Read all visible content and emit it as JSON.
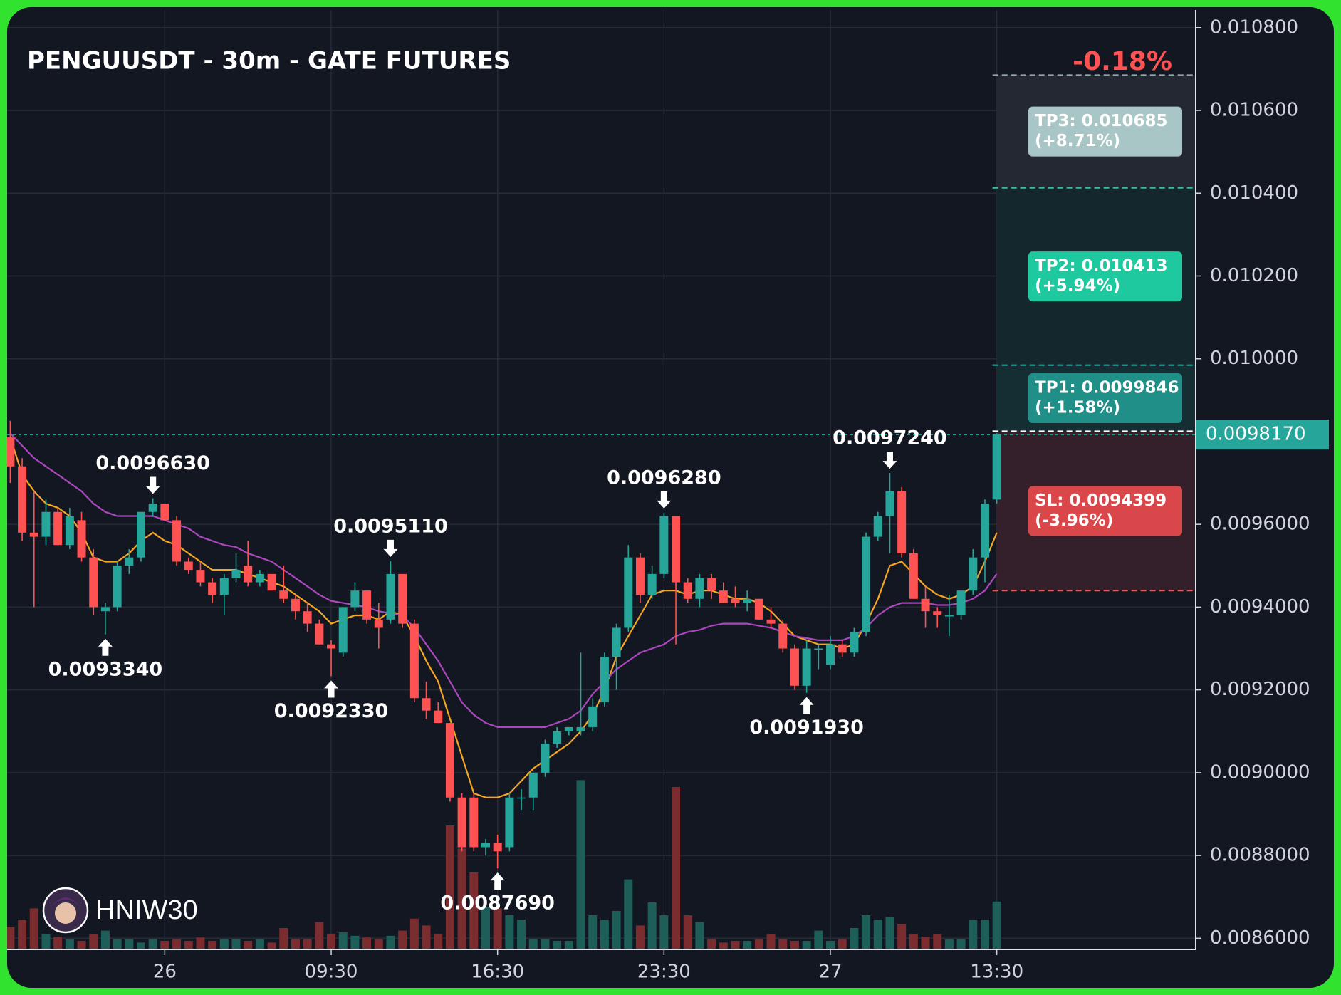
{
  "chart_data": {
    "type": "candlestick",
    "title": "PENGUUSDT - 30m - GATE FUTURES",
    "change_label": "-0.18%",
    "watermark": "HNIW30",
    "up_color": "#26a69a",
    "down_color": "#ff5252",
    "grid": true,
    "ylim": [
      0.008573,
      0.010842
    ],
    "yticks": [
      {
        "value": 0.0086,
        "label": "0.0086000"
      },
      {
        "value": 0.0088,
        "label": "0.0088000"
      },
      {
        "value": 0.009,
        "label": "0.0090000"
      },
      {
        "value": 0.0092,
        "label": "0.0092000"
      },
      {
        "value": 0.0094,
        "label": "0.0094000"
      },
      {
        "value": 0.0096,
        "label": "0.0096000"
      },
      {
        "value": 0.01,
        "label": "0.010000"
      },
      {
        "value": 0.0102,
        "label": "0.010200"
      },
      {
        "value": 0.0104,
        "label": "0.010400"
      },
      {
        "value": 0.0106,
        "label": "0.010600"
      },
      {
        "value": 0.0108,
        "label": "0.010800"
      }
    ],
    "xticks": [
      {
        "value": 13,
        "label": "26"
      },
      {
        "value": 27,
        "label": "09:30"
      },
      {
        "value": 41,
        "label": "16:30"
      },
      {
        "value": 55,
        "label": "23:30"
      },
      {
        "value": 69,
        "label": "27"
      },
      {
        "value": 83,
        "label": "13:30"
      }
    ],
    "open": [
      0.00981,
      0.00974,
      0.00958,
      0.00957,
      0.00963,
      0.00955,
      0.00961,
      0.00952,
      0.00939,
      0.0094,
      0.0095,
      0.00952,
      0.00963,
      0.00965,
      0.00961,
      0.00951,
      0.00949,
      0.00946,
      0.00943,
      0.00947,
      0.0095,
      0.00946,
      0.00948,
      0.00944,
      0.00942,
      0.00939,
      0.00936,
      0.00931,
      0.00929,
      0.0094,
      0.00944,
      0.00937,
      0.00937,
      0.00948,
      0.00936,
      0.00918,
      0.00915,
      0.00912,
      0.00894,
      0.00894,
      0.00882,
      0.00883,
      0.00882,
      0.00894,
      0.00894,
      0.009,
      0.00907,
      0.0091,
      0.0091,
      0.00911,
      0.00917,
      0.00928,
      0.00935,
      0.00952,
      0.00943,
      0.00948,
      0.00962,
      0.00946,
      0.00942,
      0.00947,
      0.00944,
      0.00942,
      0.00941,
      0.00942,
      0.00937,
      0.00936,
      0.0093,
      0.00921,
      0.0093,
      0.00926,
      0.00931,
      0.00929,
      0.00934,
      0.00957,
      0.00962,
      0.00968,
      0.00953,
      0.00942,
      0.00939,
      0.00938,
      0.00938,
      0.00944,
      0.00952,
      0.00966
    ],
    "high": [
      0.00985,
      0.00976,
      0.00968,
      0.00966,
      0.00964,
      0.00964,
      0.00963,
      0.00954,
      0.00941,
      0.00951,
      0.00954,
      0.00963,
      0.009663,
      0.00965,
      0.00962,
      0.00952,
      0.00951,
      0.00947,
      0.00948,
      0.00953,
      0.00956,
      0.00949,
      0.00948,
      0.0095,
      0.00943,
      0.00941,
      0.00937,
      0.00932,
      0.0094,
      0.00946,
      0.00944,
      0.00941,
      0.009511,
      0.00948,
      0.00937,
      0.00922,
      0.00917,
      0.00912,
      0.00895,
      0.00895,
      0.00884,
      0.00885,
      0.00895,
      0.00896,
      0.009,
      0.00908,
      0.00911,
      0.00911,
      0.00929,
      0.00918,
      0.00929,
      0.00936,
      0.00955,
      0.00953,
      0.0095,
      0.009628,
      0.00962,
      0.00947,
      0.00948,
      0.00948,
      0.00946,
      0.00945,
      0.00944,
      0.00942,
      0.0094,
      0.00937,
      0.00931,
      0.00932,
      0.00931,
      0.00933,
      0.00932,
      0.00935,
      0.00958,
      0.00963,
      0.009724,
      0.00969,
      0.00954,
      0.00945,
      0.0094,
      0.00943,
      0.00944,
      0.00954,
      0.00966,
      0.00982
    ],
    "low": [
      0.0097,
      0.00956,
      0.0094,
      0.00955,
      0.00955,
      0.00954,
      0.00951,
      0.00938,
      0.009334,
      0.00939,
      0.00948,
      0.00951,
      0.00962,
      0.00961,
      0.0095,
      0.00948,
      0.00945,
      0.00941,
      0.00938,
      0.00946,
      0.00945,
      0.00945,
      0.00944,
      0.00941,
      0.00937,
      0.00934,
      0.00931,
      0.009233,
      0.00928,
      0.00939,
      0.00936,
      0.0093,
      0.00936,
      0.00935,
      0.00917,
      0.00913,
      0.00912,
      0.00893,
      0.00881,
      0.00881,
      0.0088,
      0.008769,
      0.00881,
      0.00891,
      0.00891,
      0.00899,
      0.00906,
      0.00909,
      0.00909,
      0.0091,
      0.00916,
      0.0092,
      0.00934,
      0.00941,
      0.00942,
      0.00947,
      0.00931,
      0.00941,
      0.0094,
      0.00942,
      0.00941,
      0.0094,
      0.00939,
      0.00937,
      0.00935,
      0.00929,
      0.0092,
      0.009193,
      0.00925,
      0.00925,
      0.00928,
      0.00928,
      0.00933,
      0.00956,
      0.00953,
      0.00952,
      0.00942,
      0.00935,
      0.00935,
      0.00933,
      0.00937,
      0.00943,
      0.00946,
      0.00965
    ],
    "close": [
      0.00974,
      0.00958,
      0.00957,
      0.00963,
      0.00955,
      0.00962,
      0.00952,
      0.0094,
      0.0094,
      0.0095,
      0.00952,
      0.00963,
      0.00965,
      0.00961,
      0.00951,
      0.00949,
      0.00946,
      0.00943,
      0.00947,
      0.00949,
      0.00946,
      0.00948,
      0.00944,
      0.00942,
      0.00939,
      0.00936,
      0.00931,
      0.0093,
      0.0094,
      0.00944,
      0.00937,
      0.00935,
      0.00948,
      0.00936,
      0.00918,
      0.00915,
      0.00912,
      0.00894,
      0.00882,
      0.00882,
      0.00883,
      0.00881,
      0.00894,
      0.00894,
      0.009,
      0.00907,
      0.0091,
      0.00911,
      0.00911,
      0.00916,
      0.00928,
      0.00935,
      0.00952,
      0.00943,
      0.00948,
      0.00962,
      0.00946,
      0.00942,
      0.00947,
      0.00944,
      0.00941,
      0.00941,
      0.00942,
      0.00937,
      0.00936,
      0.0093,
      0.00921,
      0.0093,
      0.0093,
      0.00931,
      0.00929,
      0.00934,
      0.00957,
      0.00962,
      0.00968,
      0.00953,
      0.00942,
      0.00939,
      0.00938,
      0.00938,
      0.00944,
      0.00952,
      0.00965,
      0.009817
    ],
    "volume": [
      26,
      35,
      48,
      18,
      15,
      12,
      10,
      18,
      22,
      12,
      12,
      8,
      12,
      10,
      12,
      10,
      14,
      10,
      12,
      12,
      10,
      12,
      8,
      25,
      12,
      12,
      32,
      18,
      20,
      16,
      14,
      12,
      16,
      22,
      36,
      28,
      18,
      145,
      118,
      90,
      50,
      48,
      40,
      35,
      12,
      12,
      10,
      10,
      198,
      40,
      35,
      45,
      82,
      28,
      55,
      40,
      190,
      40,
      32,
      12,
      8,
      10,
      10,
      12,
      18,
      12,
      10,
      10,
      22,
      10,
      12,
      25,
      40,
      35,
      38,
      30,
      18,
      15,
      18,
      12,
      12,
      35,
      35,
      56
    ],
    "up_volume_color": "#1e5e58",
    "down_volume_color": "#7a2c2e",
    "ma_lines": [
      {
        "color": "#f5a623",
        "values": [
          0.00981,
          0.00972,
          0.00968,
          0.00965,
          0.00964,
          0.00962,
          0.00958,
          0.00952,
          0.00951,
          0.00951,
          0.00953,
          0.00956,
          0.00958,
          0.00956,
          0.00955,
          0.00953,
          0.00951,
          0.00949,
          0.00949,
          0.00949,
          0.00948,
          0.00947,
          0.00946,
          0.00945,
          0.00943,
          0.00941,
          0.00939,
          0.00936,
          0.00937,
          0.00938,
          0.00938,
          0.00937,
          0.00939,
          0.00938,
          0.00933,
          0.00927,
          0.00922,
          0.00913,
          0.00904,
          0.00895,
          0.00894,
          0.00894,
          0.00895,
          0.00898,
          0.00901,
          0.00903,
          0.00905,
          0.00907,
          0.0091,
          0.00914,
          0.0092,
          0.00928,
          0.00933,
          0.00938,
          0.00943,
          0.00944,
          0.00944,
          0.00943,
          0.00944,
          0.00944,
          0.00943,
          0.00942,
          0.00942,
          0.00941,
          0.00939,
          0.00936,
          0.00933,
          0.00932,
          0.00931,
          0.00931,
          0.0093,
          0.00931,
          0.00936,
          0.00942,
          0.0095,
          0.00951,
          0.00948,
          0.00945,
          0.00943,
          0.00942,
          0.00943,
          0.00945,
          0.00951,
          0.00958
        ]
      },
      {
        "color": "#ab47bc",
        "values": [
          0.00982,
          0.00979,
          0.00976,
          0.00974,
          0.00972,
          0.0097,
          0.00968,
          0.00965,
          0.00963,
          0.00962,
          0.00962,
          0.00962,
          0.00962,
          0.00961,
          0.0096,
          0.00959,
          0.00957,
          0.00956,
          0.00955,
          0.009545,
          0.00953,
          0.00952,
          0.00951,
          0.00949,
          0.00947,
          0.00945,
          0.00943,
          0.009415,
          0.00941,
          0.009405,
          0.0094,
          0.00939,
          0.009385,
          0.00938,
          0.00935,
          0.00931,
          0.00927,
          0.00922,
          0.00917,
          0.00914,
          0.00912,
          0.00911,
          0.00911,
          0.00911,
          0.00911,
          0.00911,
          0.00912,
          0.00913,
          0.00915,
          0.00919,
          0.00922,
          0.00925,
          0.00927,
          0.00929,
          0.0093,
          0.00931,
          0.00933,
          0.00934,
          0.009345,
          0.009355,
          0.00936,
          0.00936,
          0.00936,
          0.009355,
          0.00935,
          0.00934,
          0.00933,
          0.009325,
          0.00932,
          0.00932,
          0.00932,
          0.00933,
          0.00935,
          0.00938,
          0.0094,
          0.00941,
          0.00941,
          0.00941,
          0.009405,
          0.009405,
          0.00941,
          0.00942,
          0.00944,
          0.00948
        ]
      }
    ],
    "annotations": [
      {
        "x": 8,
        "value": 0.009334,
        "label": "0.0093340",
        "kind": "low"
      },
      {
        "x": 12,
        "value": 0.009663,
        "label": "0.0096630",
        "kind": "high"
      },
      {
        "x": 27,
        "value": 0.009233,
        "label": "0.0092330",
        "kind": "low"
      },
      {
        "x": 32,
        "value": 0.009511,
        "label": "0.0095110",
        "kind": "high"
      },
      {
        "x": 41,
        "value": 0.008769,
        "label": "0.0087690",
        "kind": "low"
      },
      {
        "x": 55,
        "value": 0.009628,
        "label": "0.0096280",
        "kind": "high"
      },
      {
        "x": 67,
        "value": 0.009193,
        "label": "0.0091930",
        "kind": "low"
      },
      {
        "x": 74,
        "value": 0.009724,
        "label": "0.0097240",
        "kind": "high"
      }
    ],
    "entry": 0.009825,
    "last_price": {
      "value": 0.009817,
      "label": "0.0098170"
    },
    "levels": [
      {
        "label": "TP3: 0.010685",
        "note": "(+8.71%)",
        "value": 0.010685,
        "line_color": "#b7cdd0",
        "box_color": "#a9c6c6",
        "zone_color": "#232832"
      },
      {
        "label": "TP2: 0.010413",
        "note": "(+5.94%)",
        "value": 0.010413,
        "line_color": "#26c6a0",
        "box_color": "#1fc99f",
        "zone_color": "#13272c"
      },
      {
        "label": "TP1: 0.0099846",
        "note": "(+1.58%)",
        "value": 0.0099846,
        "line_color": "#26a69a",
        "box_color": "#1f8f88",
        "zone_color": "#152e34"
      },
      {
        "label": "SL: 0.0094399",
        "note": "(-3.96%)",
        "value": 0.0094399,
        "line_color": "#ef5350",
        "box_color": "#d9474a",
        "zone_color": "#34202a"
      }
    ]
  }
}
